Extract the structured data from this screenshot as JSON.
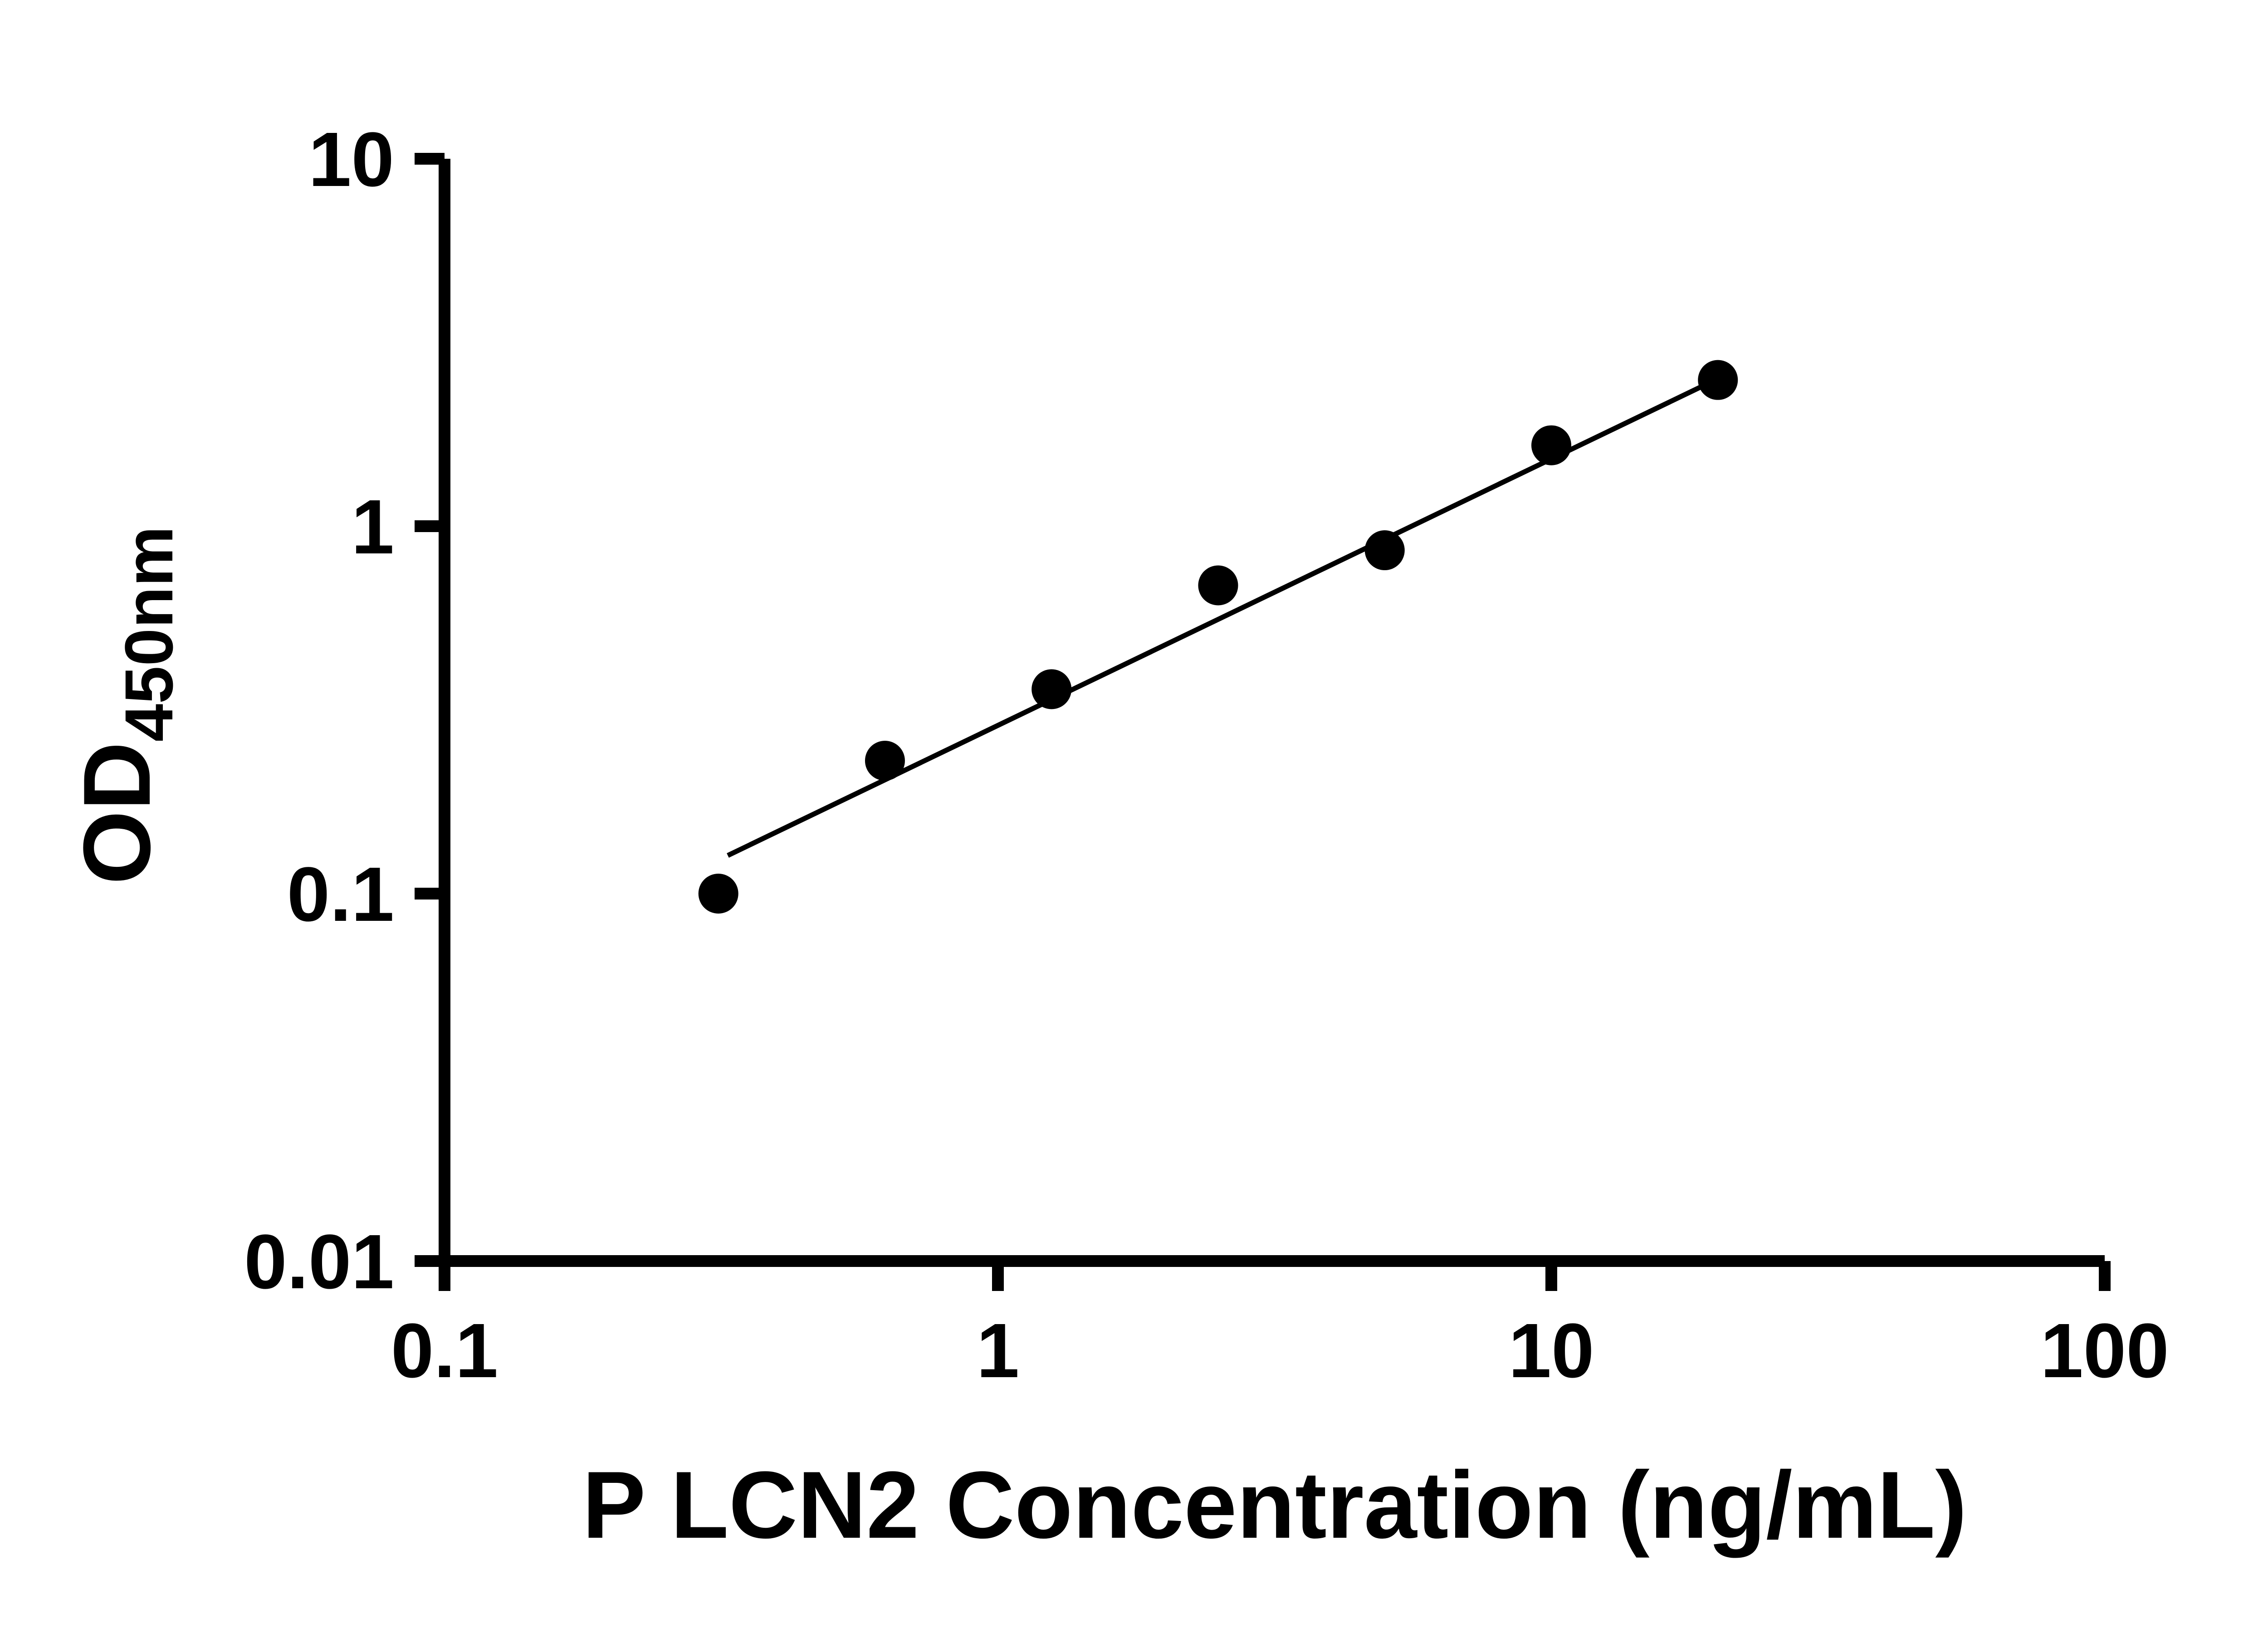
{
  "figure": {
    "background": "#ffffff"
  },
  "chart_data": {
    "type": "scatter",
    "title": "",
    "xlabel": "P LCN2 Concentration (ng/mL)",
    "ylabel": "OD450nm",
    "ylabel_main": "OD",
    "ylabel_sub": "450nm",
    "x_scale": "log",
    "y_scale": "log",
    "xlim": [
      0.1,
      100
    ],
    "ylim": [
      0.01,
      10
    ],
    "x_ticks": [
      0.1,
      1,
      10,
      100
    ],
    "x_tick_labels": [
      "0.1",
      "1",
      "10",
      "100"
    ],
    "y_ticks": [
      0.01,
      0.1,
      1,
      10
    ],
    "y_tick_labels": [
      "0.01",
      "0.1",
      "1",
      "10"
    ],
    "grid": false,
    "legend": false,
    "axis_color": "#000000",
    "marker_color": "#000000",
    "line_color": "#000000",
    "points": [
      {
        "x": 0.3125,
        "y": 0.1
      },
      {
        "x": 0.625,
        "y": 0.23
      },
      {
        "x": 1.25,
        "y": 0.36
      },
      {
        "x": 2.5,
        "y": 0.69
      },
      {
        "x": 5,
        "y": 0.86
      },
      {
        "x": 10,
        "y": 1.66
      },
      {
        "x": 20,
        "y": 2.5
      }
    ],
    "trend_line": {
      "x1": 0.325,
      "y1": 0.127,
      "x2": 20,
      "y2": 2.52
    }
  }
}
